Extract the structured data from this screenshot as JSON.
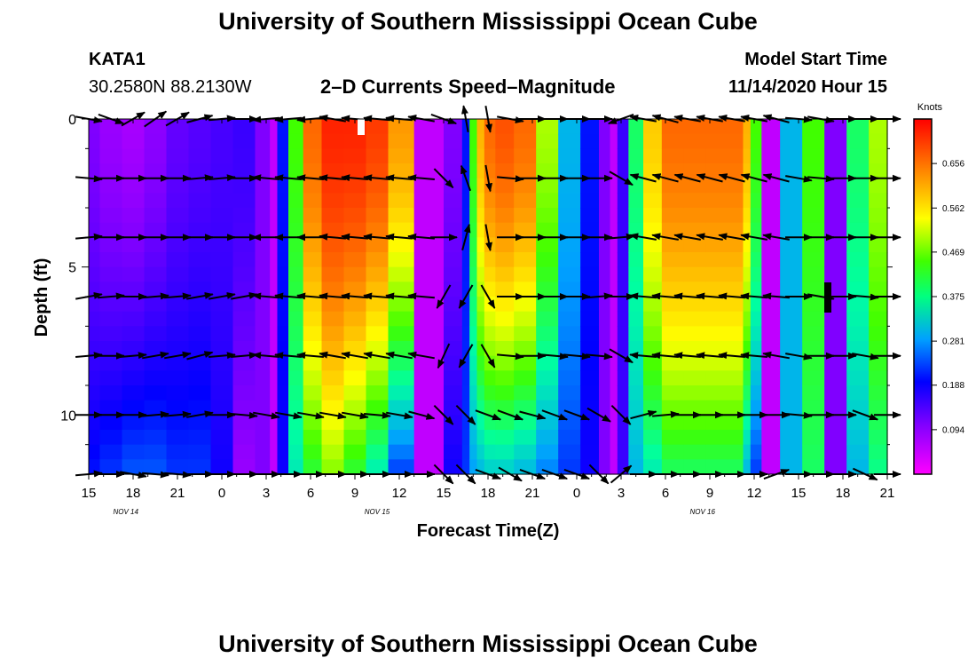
{
  "page": {
    "title_top": "University of Southern Mississippi Ocean Cube",
    "title_bottom": "University of Southern Mississippi Ocean Cube",
    "station": "KATA1",
    "coords": "30.2580N 88.2130W",
    "plot_title": "2–D Currents Speed–Magnitude",
    "model_label": "Model Start Time",
    "model_time": "11/14/2020 Hour 15"
  },
  "chart_data": {
    "type": "heatmap",
    "title": "2–D Currents Speed–Magnitude",
    "xlabel": "Forecast Time(Z)",
    "ylabel": "Depth (ft)",
    "x_ticks": [
      "15",
      "18",
      "21",
      "0",
      "3",
      "6",
      "9",
      "12",
      "15",
      "18",
      "21",
      "0",
      "3",
      "6",
      "9",
      "12",
      "15",
      "18",
      "21"
    ],
    "date_labels": [
      {
        "text": "NOV 14",
        "hour": 19
      },
      {
        "text": "NOV 15",
        "hour": 43
      },
      {
        "text": "NOV 16",
        "hour": 85
      }
    ],
    "xlim_hours": [
      0,
      54
    ],
    "y_ticks": [
      "0",
      "5",
      "10"
    ],
    "y_tick_values": [
      0,
      5,
      10
    ],
    "ylim_ft": [
      0,
      12
    ],
    "colorbar": {
      "title": "Knots",
      "tick_labels": [
        "0.656",
        "0.562",
        "0.469",
        "0.375",
        "0.281",
        "0.188",
        "0.094"
      ],
      "tick_values": [
        0.656,
        0.562,
        0.469,
        0.375,
        0.281,
        0.188,
        0.094
      ],
      "range": [
        0.0,
        0.75
      ]
    },
    "depth_rows_ft": [
      0.25,
      0.75,
      1.25,
      1.75,
      2.25,
      2.75,
      3.25,
      3.75,
      4.25,
      4.75,
      5.25,
      5.75,
      6.25,
      6.75,
      7.25,
      7.75,
      8.25,
      8.75,
      9.25,
      9.75,
      10.25,
      10.75,
      11.25,
      11.75
    ],
    "speed_knots_by_hour": {
      "hours": [
        0,
        1.5,
        3,
        4.5,
        6,
        7.5,
        9,
        10.5,
        12,
        12.5,
        13,
        14,
        15,
        16.5,
        18,
        19.5,
        21,
        23,
        25,
        25.5,
        26,
        26.5,
        27,
        28,
        29.5,
        31,
        32.5,
        34,
        35,
        35.5,
        36,
        37,
        38,
        39.5,
        41,
        42.5,
        44,
        44.5,
        45,
        46,
        47.5,
        49,
        50.5,
        52,
        53.5,
        54
      ],
      "surface": [
        0.1,
        0.08,
        0.07,
        0.09,
        0.12,
        0.13,
        0.14,
        0.15,
        0.1,
        0.05,
        0.2,
        0.45,
        0.66,
        0.72,
        0.72,
        0.7,
        0.62,
        0.05,
        0.1,
        0.2,
        0.45,
        0.6,
        0.66,
        0.68,
        0.66,
        0.5,
        0.3,
        0.2,
        0.1,
        0.05,
        0.15,
        0.4,
        0.58,
        0.66,
        0.66,
        0.66,
        0.66,
        0.6,
        0.45,
        0.05,
        0.3,
        0.45,
        0.1,
        0.4,
        0.5,
        0.5
      ],
      "bottom": [
        0.2,
        0.22,
        0.24,
        0.24,
        0.22,
        0.22,
        0.18,
        0.08,
        0.1,
        0.05,
        0.18,
        0.35,
        0.42,
        0.48,
        0.42,
        0.35,
        0.22,
        0.05,
        0.18,
        0.22,
        0.28,
        0.3,
        0.32,
        0.32,
        0.3,
        0.26,
        0.22,
        0.18,
        0.1,
        0.05,
        0.15,
        0.3,
        0.35,
        0.4,
        0.4,
        0.4,
        0.4,
        0.3,
        0.22,
        0.05,
        0.3,
        0.4,
        0.1,
        0.3,
        0.38,
        0.38
      ]
    },
    "vector_columns_hours": [
      0,
      1.5,
      3,
      4.5,
      6,
      7.5,
      9,
      10.5,
      12,
      13.5,
      15,
      16.5,
      18,
      19.5,
      21,
      22.5,
      24,
      25.5,
      27,
      28.5,
      30,
      31.5,
      33,
      34.5,
      36,
      37.5,
      39,
      40.5,
      42,
      43.5,
      45,
      46.5,
      48,
      49.5,
      51,
      52.5,
      54
    ],
    "vector_rows_ft": [
      0,
      2,
      4,
      6,
      8,
      10,
      12
    ],
    "vector_directions_deg": [
      [
        -10,
        -20,
        30,
        35,
        30,
        15,
        5,
        0,
        -175,
        -175,
        -175,
        170,
        175,
        175,
        175,
        170,
        -20,
        100,
        -80,
        -10,
        0,
        0,
        0,
        0,
        -160,
        170,
        165,
        170,
        170,
        170,
        170,
        165,
        -5,
        -10,
        0,
        0,
        0
      ],
      [
        -5,
        0,
        0,
        0,
        0,
        5,
        5,
        0,
        175,
        175,
        175,
        175,
        175,
        175,
        175,
        175,
        -45,
        110,
        -80,
        -5,
        0,
        0,
        0,
        0,
        -30,
        165,
        165,
        165,
        165,
        165,
        165,
        165,
        -10,
        -5,
        0,
        0,
        0
      ],
      [
        5,
        0,
        0,
        0,
        0,
        0,
        0,
        0,
        180,
        180,
        180,
        175,
        175,
        175,
        175,
        175,
        0,
        75,
        -80,
        0,
        0,
        0,
        0,
        0,
        5,
        170,
        170,
        170,
        170,
        170,
        170,
        170,
        0,
        0,
        0,
        0,
        0
      ],
      [
        10,
        5,
        0,
        5,
        5,
        10,
        10,
        10,
        175,
        175,
        175,
        175,
        175,
        175,
        175,
        175,
        -120,
        240,
        -60,
        0,
        0,
        0,
        0,
        5,
        0,
        175,
        175,
        175,
        175,
        175,
        175,
        175,
        0,
        -10,
        0,
        -5,
        0
      ],
      [
        5,
        0,
        5,
        10,
        10,
        15,
        5,
        5,
        175,
        175,
        175,
        170,
        170,
        170,
        170,
        170,
        -115,
        240,
        -60,
        -5,
        0,
        -5,
        -5,
        -5,
        -30,
        175,
        175,
        175,
        175,
        175,
        175,
        170,
        -10,
        0,
        0,
        -10,
        0
      ],
      [
        0,
        0,
        0,
        5,
        5,
        10,
        0,
        -5,
        -10,
        -10,
        -10,
        -10,
        -10,
        -5,
        -10,
        -15,
        -45,
        -45,
        -20,
        -20,
        -15,
        -20,
        -20,
        -30,
        -45,
        15,
        5,
        0,
        0,
        0,
        0,
        0,
        -5,
        0,
        0,
        -20,
        0
      ],
      [
        5,
        0,
        -10,
        -5,
        -5,
        0,
        0,
        0,
        0,
        0,
        0,
        0,
        0,
        0,
        0,
        0,
        -45,
        -45,
        -20,
        -30,
        -20,
        -20,
        -20,
        -45,
        40,
        0,
        0,
        0,
        0,
        0,
        0,
        20,
        0,
        0,
        0,
        -25,
        0
      ]
    ]
  }
}
